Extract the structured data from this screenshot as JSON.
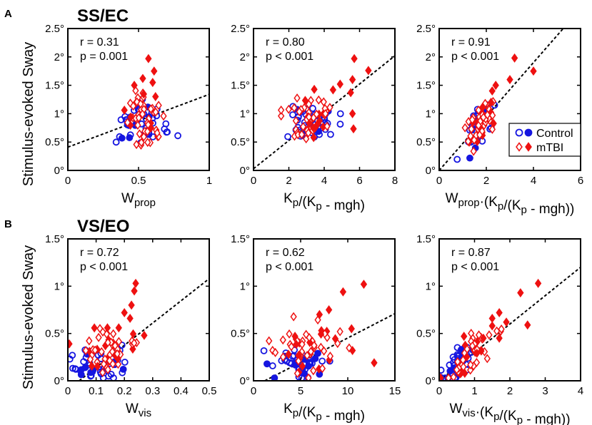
{
  "figure": {
    "panel_letters": [
      "A",
      "B"
    ],
    "row_titles": [
      "SS/EC",
      "VS/EO"
    ],
    "ylabel": "Stimulus-evoked Sway",
    "colors": {
      "control": "#1515e0",
      "mtbi": "#ee1111"
    },
    "legend": [
      "Control",
      "mTBI"
    ]
  },
  "chart_data": [
    {
      "type": "scatter",
      "row": 0,
      "col": 0,
      "xlabel": "W",
      "xlabel_sub": "prop",
      "xlabel_post": "",
      "xlim": [
        0,
        1
      ],
      "ylim": [
        0,
        2.5
      ],
      "xticks": [
        "0",
        "0.5",
        "1"
      ],
      "xtick_vals": [
        0,
        0.5,
        1
      ],
      "yticks": [
        "0°",
        "0.5°",
        "1°",
        "1.5°",
        "2°",
        "2.5°"
      ],
      "ytick_vals": [
        0,
        0.5,
        1,
        1.5,
        2,
        2.5
      ],
      "r_label": "r = 0.31",
      "p_label": "p = 0.001",
      "fit": [
        [
          0,
          0.41
        ],
        [
          1,
          1.34
        ]
      ],
      "seed": 11,
      "cx": [
        0.52,
        0.09
      ],
      "cy": [
        0.85,
        0.18
      ],
      "mx": [
        0.52,
        0.07
      ],
      "my": [
        0.92,
        0.25
      ],
      "extra_mtbi": [
        [
          0.57,
          1.97
        ],
        [
          0.61,
          1.75
        ],
        [
          0.53,
          1.62
        ],
        [
          0.6,
          1.55
        ],
        [
          0.47,
          1.5
        ],
        [
          0.62,
          1.3
        ]
      ]
    },
    {
      "type": "scatter",
      "row": 0,
      "col": 1,
      "xlabel": "K",
      "xlabel_sub": "p",
      "xlabel_post": "/(K|p| - mgh)",
      "xlim": [
        0,
        8
      ],
      "ylim": [
        0,
        2.5
      ],
      "xticks": [
        "0",
        "2",
        "4",
        "6",
        "8"
      ],
      "xtick_vals": [
        0,
        2,
        4,
        6,
        8
      ],
      "yticks": [
        "0°",
        "0.5°",
        "1°",
        "1.5°",
        "2°",
        "2.5°"
      ],
      "ytick_vals": [
        0,
        0.5,
        1,
        1.5,
        2,
        2.5
      ],
      "r_label": "r = 0.80",
      "p_label": "p < 0.001",
      "fit": [
        [
          0,
          0.03
        ],
        [
          8,
          2.02
        ]
      ],
      "seed": 23,
      "cx": [
        3.2,
        0.6
      ],
      "cy": [
        0.85,
        0.18
      ],
      "mx": [
        3.3,
        0.7
      ],
      "my": [
        0.92,
        0.22
      ],
      "extra_mtbi": [
        [
          5.7,
          1.97
        ],
        [
          6.5,
          1.76
        ],
        [
          5.6,
          1.6
        ],
        [
          4.9,
          1.52
        ],
        [
          4.5,
          1.42
        ],
        [
          5.5,
          1.37
        ],
        [
          5.6,
          1.0
        ]
      ]
    },
    {
      "type": "scatter",
      "row": 0,
      "col": 2,
      "xlabel": "W",
      "xlabel_sub": "prop",
      "xlabel_post": "·(K|p|/(K|p| - mgh))",
      "xlim": [
        0,
        6
      ],
      "ylim": [
        0,
        2.5
      ],
      "xticks": [
        "0",
        "2",
        "4",
        "6"
      ],
      "xtick_vals": [
        0,
        2,
        4,
        6
      ],
      "yticks": [
        "0°",
        "0.5°",
        "1°",
        "1.5°",
        "2°",
        "2.5°"
      ],
      "ytick_vals": [
        0,
        0.5,
        1,
        1.5,
        2,
        2.5
      ],
      "r_label": "r = 0.91",
      "p_label": "p < 0.001",
      "fit": [
        [
          0,
          0.0
        ],
        [
          6,
          2.85
        ]
      ],
      "seed": 37,
      "cx": [
        1.7,
        0.35
      ],
      "cy": [
        0.8,
        0.15
      ],
      "mx": [
        1.75,
        0.35
      ],
      "my": [
        0.85,
        0.17
      ],
      "line_mode": true,
      "extra_mtbi": [
        [
          3.2,
          1.98
        ],
        [
          4.0,
          1.75
        ],
        [
          3.0,
          1.6
        ],
        [
          2.4,
          1.5
        ],
        [
          2.25,
          1.4
        ],
        [
          2.2,
          1.2
        ]
      ],
      "show_legend": true
    },
    {
      "type": "scatter",
      "row": 1,
      "col": 0,
      "xlabel": "W",
      "xlabel_sub": "vis",
      "xlabel_post": "",
      "xlim": [
        0,
        0.5
      ],
      "ylim": [
        0,
        1.5
      ],
      "xticks": [
        "0",
        "0.1",
        "0.2",
        "0.3",
        "0.4",
        "0.5"
      ],
      "xtick_vals": [
        0,
        0.1,
        0.2,
        0.3,
        0.4,
        0.5
      ],
      "yticks": [
        "0°",
        "0.5°",
        "1°",
        "1.5°"
      ],
      "ytick_vals": [
        0,
        0.5,
        1,
        1.5
      ],
      "r_label": "r = 0.72",
      "p_label": "p < 0.001",
      "fit": [
        [
          0.04,
          0.0
        ],
        [
          0.5,
          1.08
        ]
      ],
      "seed": 51,
      "cx": [
        0.11,
        0.045
      ],
      "cy": [
        0.18,
        0.09
      ],
      "mx": [
        0.15,
        0.05
      ],
      "my": [
        0.3,
        0.12
      ],
      "extra_mtbi": [
        [
          0.24,
          1.03
        ],
        [
          0.235,
          0.95
        ],
        [
          0.225,
          0.8
        ],
        [
          0.2,
          0.72
        ],
        [
          0.22,
          0.66
        ],
        [
          0.18,
          0.56
        ],
        [
          0.14,
          0.56
        ],
        [
          0.27,
          0.48
        ]
      ]
    },
    {
      "type": "scatter",
      "row": 1,
      "col": 1,
      "xlabel": "K",
      "xlabel_sub": "p",
      "xlabel_post": "/(K|p| - mgh)",
      "xlim": [
        0,
        15
      ],
      "ylim": [
        0,
        1.5
      ],
      "xticks": [
        "0",
        "5",
        "10",
        "15"
      ],
      "xtick_vals": [
        0,
        5,
        10,
        15
      ],
      "yticks": [
        "0°",
        "0.5°",
        "1°",
        "1.5°"
      ],
      "ytick_vals": [
        0,
        0.5,
        1,
        1.5
      ],
      "r_label": "r = 0.62",
      "p_label": "p < 0.001",
      "fit": [
        [
          1.2,
          0.0
        ],
        [
          15,
          0.71
        ]
      ],
      "seed": 67,
      "cx": [
        5.3,
        1.5
      ],
      "cy": [
        0.17,
        0.08
      ],
      "mx": [
        6.0,
        2.0
      ],
      "my": [
        0.3,
        0.15
      ],
      "extra_mtbi": [
        [
          11.7,
          1.02
        ],
        [
          9.5,
          0.94
        ],
        [
          8.0,
          0.75
        ],
        [
          7.0,
          0.7
        ],
        [
          10.4,
          0.55
        ],
        [
          12.8,
          0.19
        ],
        [
          10.5,
          0.32
        ],
        [
          7.2,
          0.53
        ],
        [
          4.4,
          0.47
        ]
      ]
    },
    {
      "type": "scatter",
      "row": 1,
      "col": 2,
      "xlabel": "W",
      "xlabel_sub": "vis",
      "xlabel_post": "·(K|p|/(K|p| - mgh))",
      "xlim": [
        0,
        4
      ],
      "ylim": [
        0,
        1.5
      ],
      "xticks": [
        "0",
        "1",
        "2",
        "3",
        "4"
      ],
      "xtick_vals": [
        0,
        1,
        2,
        3,
        4
      ],
      "yticks": [
        "0°",
        "0.5°",
        "1°",
        "1.5°"
      ],
      "ytick_vals": [
        0,
        0.5,
        1,
        1.5
      ],
      "r_label": "r = 0.87",
      "p_label": "p < 0.001",
      "fit": [
        [
          0,
          0.0
        ],
        [
          4,
          1.2
        ]
      ],
      "seed": 83,
      "cx": [
        0.55,
        0.25
      ],
      "cy": [
        0.15,
        0.07
      ],
      "mx": [
        0.8,
        0.35
      ],
      "my": [
        0.27,
        0.12
      ],
      "line_mode": true,
      "extra_mtbi": [
        [
          2.8,
          1.03
        ],
        [
          2.3,
          0.93
        ],
        [
          1.7,
          0.72
        ],
        [
          1.5,
          0.66
        ],
        [
          1.9,
          0.62
        ],
        [
          1.5,
          0.58
        ],
        [
          1.7,
          0.45
        ],
        [
          2.5,
          0.59
        ],
        [
          1.25,
          0.45
        ]
      ]
    }
  ]
}
